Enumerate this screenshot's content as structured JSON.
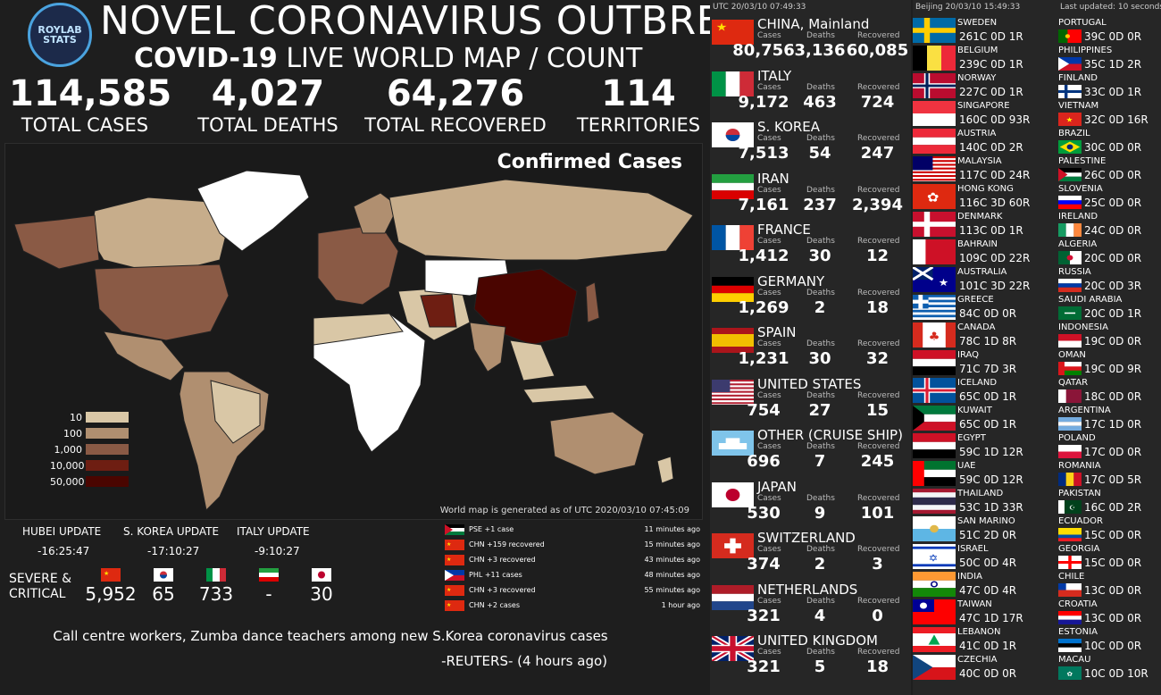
{
  "header": {
    "logo_text": "ROYLAB\nSTATS",
    "title": "NOVEL CORONAVIRUS OUTBREAK",
    "subtitle_bold": "COVID-19",
    "subtitle_rest": "LIVE WORLD MAP / COUNT"
  },
  "stats": [
    {
      "value": "114,585",
      "label": "TOTAL CASES"
    },
    {
      "value": "4,027",
      "label": "TOTAL DEATHS"
    },
    {
      "value": "64,276",
      "label": "TOTAL RECOVERED"
    },
    {
      "value": "114",
      "label": "TERRITORIES"
    }
  ],
  "map": {
    "title": "Confirmed Cases",
    "note": "World map is generated as of UTC 2020/03/10 07:45:09",
    "legend": [
      {
        "label": "10",
        "color": "#d9c7a6"
      },
      {
        "label": "100",
        "color": "#b08f70"
      },
      {
        "label": "1,000",
        "color": "#8a5a45"
      },
      {
        "label": "10,000",
        "color": "#6e1e12"
      },
      {
        "label": "50,000",
        "color": "#4a0500"
      }
    ]
  },
  "updates": [
    {
      "label": "HUBEI UPDATE",
      "value": "-16:25:47"
    },
    {
      "label": "S. KOREA UPDATE",
      "value": "-17:10:27"
    },
    {
      "label": "ITALY UPDATE",
      "value": "-9:10:27"
    }
  ],
  "severe": {
    "label": "SEVERE &\nCRITICAL",
    "items": [
      {
        "flag": "china",
        "value": "5,952"
      },
      {
        "flag": "korea",
        "value": "65"
      },
      {
        "flag": "italy",
        "value": "733"
      },
      {
        "flag": "iran",
        "value": "-"
      },
      {
        "flag": "japan",
        "value": "30"
      }
    ]
  },
  "feed": [
    {
      "flag": "palestine",
      "text": "PSE +1 case",
      "time": "11 minutes ago"
    },
    {
      "flag": "china",
      "text": "CHN +159 recovered",
      "time": "15 minutes ago"
    },
    {
      "flag": "china",
      "text": "CHN +3 recovered",
      "time": "43 minutes ago"
    },
    {
      "flag": "philippines",
      "text": "PHL +11 cases",
      "time": "48 minutes ago"
    },
    {
      "flag": "china",
      "text": "CHN +3 recovered",
      "time": "55 minutes ago"
    },
    {
      "flag": "china",
      "text": "CHN +2 cases",
      "time": "1 hour ago"
    }
  ],
  "news": {
    "headline": "Call centre workers, Zumba dance teachers among new S.Korea coronavirus cases",
    "source": "-REUTERS- (4 hours ago)"
  },
  "col1": {
    "utc": "UTC 20/03/10 07:49:33",
    "headers": {
      "cases": "Cases",
      "deaths": "Deaths",
      "recovered": "Recovered"
    },
    "countries": [
      {
        "name": "CHINA, Mainland",
        "flag": "china",
        "cases": "80,756",
        "deaths": "3,136",
        "recovered": "60,085"
      },
      {
        "name": "ITALY",
        "flag": "italy",
        "cases": "9,172",
        "deaths": "463",
        "recovered": "724"
      },
      {
        "name": "S. KOREA",
        "flag": "korea",
        "cases": "7,513",
        "deaths": "54",
        "recovered": "247"
      },
      {
        "name": "IRAN",
        "flag": "iran",
        "cases": "7,161",
        "deaths": "237",
        "recovered": "2,394"
      },
      {
        "name": "FRANCE",
        "flag": "france",
        "cases": "1,412",
        "deaths": "30",
        "recovered": "12"
      },
      {
        "name": "GERMANY",
        "flag": "germany",
        "cases": "1,269",
        "deaths": "2",
        "recovered": "18"
      },
      {
        "name": "SPAIN",
        "flag": "spain",
        "cases": "1,231",
        "deaths": "30",
        "recovered": "32"
      },
      {
        "name": "UNITED STATES",
        "flag": "usa",
        "cases": "754",
        "deaths": "27",
        "recovered": "15"
      },
      {
        "name": "OTHER (CRUISE SHIP)",
        "flag": "ship",
        "cases": "696",
        "deaths": "7",
        "recovered": "245"
      },
      {
        "name": "JAPAN",
        "flag": "japan",
        "cases": "530",
        "deaths": "9",
        "recovered": "101"
      },
      {
        "name": "SWITZERLAND",
        "flag": "switzerland",
        "cases": "374",
        "deaths": "2",
        "recovered": "3"
      },
      {
        "name": "NETHERLANDS",
        "flag": "netherlands",
        "cases": "321",
        "deaths": "4",
        "recovered": "0"
      },
      {
        "name": "UNITED KINGDOM",
        "flag": "uk",
        "cases": "321",
        "deaths": "5",
        "recovered": "18"
      }
    ]
  },
  "col2": {
    "beijing": "Beijing 20/03/10 15:49:33",
    "last_updated": "Last updated: 10 seconds",
    "left": [
      {
        "name": "SWEDEN",
        "flag": "sweden",
        "c": "261",
        "d": "0",
        "r": "1"
      },
      {
        "name": "BELGIUM",
        "flag": "belgium",
        "c": "239",
        "d": "0",
        "r": "1"
      },
      {
        "name": "NORWAY",
        "flag": "norway",
        "c": "227",
        "d": "0",
        "r": "1"
      },
      {
        "name": "SINGAPORE",
        "flag": "singapore",
        "c": "160",
        "d": "0",
        "r": "93"
      },
      {
        "name": "AUSTRIA",
        "flag": "austria",
        "c": "140",
        "d": "0",
        "r": "2"
      },
      {
        "name": "MALAYSIA",
        "flag": "malaysia",
        "c": "117",
        "d": "0",
        "r": "24"
      },
      {
        "name": "HONG KONG",
        "flag": "hongkong",
        "c": "116",
        "d": "3",
        "r": "60"
      },
      {
        "name": "DENMARK",
        "flag": "denmark",
        "c": "113",
        "d": "0",
        "r": "1"
      },
      {
        "name": "BAHRAIN",
        "flag": "bahrain",
        "c": "109",
        "d": "0",
        "r": "22"
      },
      {
        "name": "AUSTRALIA",
        "flag": "australia",
        "c": "101",
        "d": "3",
        "r": "22"
      },
      {
        "name": "GREECE",
        "flag": "greece",
        "c": "84",
        "d": "0",
        "r": "0"
      },
      {
        "name": "CANADA",
        "flag": "canada",
        "c": "78",
        "d": "1",
        "r": "8"
      },
      {
        "name": "IRAQ",
        "flag": "iraq",
        "c": "71",
        "d": "7",
        "r": "3"
      },
      {
        "name": "ICELAND",
        "flag": "iceland",
        "c": "65",
        "d": "0",
        "r": "1"
      },
      {
        "name": "KUWAIT",
        "flag": "kuwait",
        "c": "65",
        "d": "0",
        "r": "1"
      },
      {
        "name": "EGYPT",
        "flag": "egypt",
        "c": "59",
        "d": "1",
        "r": "12"
      },
      {
        "name": "UAE",
        "flag": "uae",
        "c": "59",
        "d": "0",
        "r": "12"
      },
      {
        "name": "THAILAND",
        "flag": "thailand",
        "c": "53",
        "d": "1",
        "r": "33"
      },
      {
        "name": "SAN MARINO",
        "flag": "sanmarino",
        "c": "51",
        "d": "2",
        "r": "0"
      },
      {
        "name": "ISRAEL",
        "flag": "israel",
        "c": "50",
        "d": "0",
        "r": "4"
      },
      {
        "name": "INDIA",
        "flag": "india",
        "c": "47",
        "d": "0",
        "r": "4"
      },
      {
        "name": "TAIWAN",
        "flag": "taiwan",
        "c": "47",
        "d": "1",
        "r": "17"
      },
      {
        "name": "LEBANON",
        "flag": "lebanon",
        "c": "41",
        "d": "0",
        "r": "1"
      },
      {
        "name": "CZECHIA",
        "flag": "czechia",
        "c": "40",
        "d": "0",
        "r": "0"
      }
    ],
    "right": [
      {
        "name": "PORTUGAL",
        "flag": "portugal",
        "c": "39",
        "d": "0",
        "r": "0"
      },
      {
        "name": "PHILIPPINES",
        "flag": "philippines",
        "c": "35",
        "d": "1",
        "r": "2"
      },
      {
        "name": "FINLAND",
        "flag": "finland",
        "c": "33",
        "d": "0",
        "r": "1"
      },
      {
        "name": "VIETNAM",
        "flag": "vietnam",
        "c": "32",
        "d": "0",
        "r": "16"
      },
      {
        "name": "BRAZIL",
        "flag": "brazil",
        "c": "30",
        "d": "0",
        "r": "0"
      },
      {
        "name": "PALESTINE",
        "flag": "palestine",
        "c": "26",
        "d": "0",
        "r": "0"
      },
      {
        "name": "SLOVENIA",
        "flag": "slovenia",
        "c": "25",
        "d": "0",
        "r": "0"
      },
      {
        "name": "IRELAND",
        "flag": "ireland",
        "c": "24",
        "d": "0",
        "r": "0"
      },
      {
        "name": "ALGERIA",
        "flag": "algeria",
        "c": "20",
        "d": "0",
        "r": "0"
      },
      {
        "name": "RUSSIA",
        "flag": "russia",
        "c": "20",
        "d": "0",
        "r": "3"
      },
      {
        "name": "SAUDI ARABIA",
        "flag": "saudi",
        "c": "20",
        "d": "0",
        "r": "1"
      },
      {
        "name": "INDONESIA",
        "flag": "indonesia",
        "c": "19",
        "d": "0",
        "r": "0"
      },
      {
        "name": "OMAN",
        "flag": "oman",
        "c": "19",
        "d": "0",
        "r": "9"
      },
      {
        "name": "QATAR",
        "flag": "qatar",
        "c": "18",
        "d": "0",
        "r": "0"
      },
      {
        "name": "ARGENTINA",
        "flag": "argentina",
        "c": "17",
        "d": "1",
        "r": "0"
      },
      {
        "name": "POLAND",
        "flag": "poland",
        "c": "17",
        "d": "0",
        "r": "0"
      },
      {
        "name": "ROMANIA",
        "flag": "romania",
        "c": "17",
        "d": "0",
        "r": "5"
      },
      {
        "name": "PAKISTAN",
        "flag": "pakistan",
        "c": "16",
        "d": "0",
        "r": "2"
      },
      {
        "name": "ECUADOR",
        "flag": "ecuador",
        "c": "15",
        "d": "0",
        "r": "0"
      },
      {
        "name": "GEORGIA",
        "flag": "georgia",
        "c": "15",
        "d": "0",
        "r": "0"
      },
      {
        "name": "CHILE",
        "flag": "chile",
        "c": "13",
        "d": "0",
        "r": "0"
      },
      {
        "name": "CROATIA",
        "flag": "croatia",
        "c": "13",
        "d": "0",
        "r": "0"
      },
      {
        "name": "ESTONIA",
        "flag": "estonia",
        "c": "10",
        "d": "0",
        "r": "0"
      },
      {
        "name": "MACAU",
        "flag": "macau",
        "c": "10",
        "d": "0",
        "r": "10"
      }
    ]
  }
}
